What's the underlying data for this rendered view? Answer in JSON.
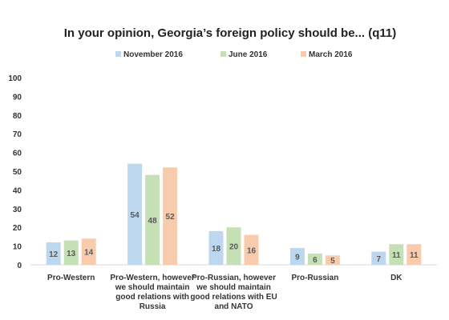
{
  "chart_data": {
    "type": "bar",
    "title": "In your opinion, Georgia’s foreign policy should be... (q11)",
    "xlabel": "",
    "ylabel": "",
    "ylim": [
      0,
      100
    ],
    "yticks": [
      0,
      10,
      20,
      30,
      40,
      50,
      60,
      70,
      80,
      90,
      100
    ],
    "grid": false,
    "legend_position": "top",
    "categories": [
      [
        "Pro-Western"
      ],
      [
        "Pro-Western, however",
        "we should maintain",
        "good relations with",
        "Russia"
      ],
      [
        "Pro-Russian, however",
        "we should maintain",
        "good relations with EU",
        "and NATO"
      ],
      [
        "Pro-Russian"
      ],
      [
        "DK"
      ]
    ],
    "series": [
      {
        "name": "November 2016",
        "color": "#bdd7ee",
        "values": [
          12,
          54,
          18,
          9,
          7
        ],
        "labels": [
          "12",
          "54",
          "18",
          "9",
          "7"
        ]
      },
      {
        "name": "June 2016",
        "color": "#c5e0b4",
        "values": [
          13,
          48,
          20,
          6,
          11
        ],
        "labels": [
          "13",
          "48",
          "20",
          "6",
          "11"
        ]
      },
      {
        "name": "March 2016",
        "color": "#f8cbad",
        "values": [
          14,
          52,
          16,
          5,
          11
        ],
        "labels": [
          "14",
          "52",
          "16",
          "5",
          "11"
        ]
      }
    ]
  }
}
